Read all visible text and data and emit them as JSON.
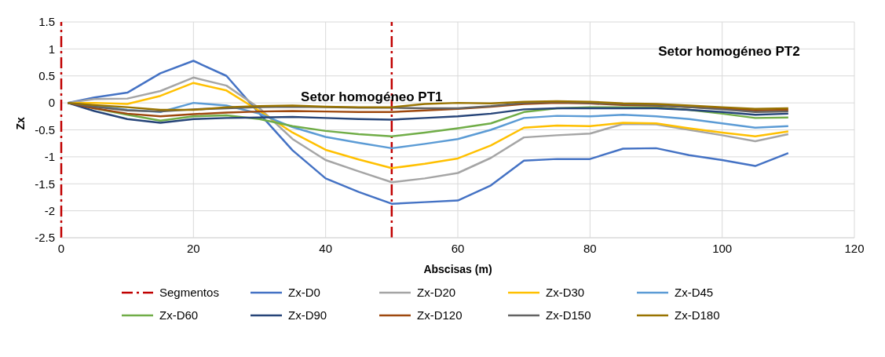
{
  "chart_data": {
    "type": "line",
    "xlabel": "Abscisas (m)",
    "ylabel": "Zx",
    "annotations": [
      "Setor homogéneo PT1",
      "Setor homogéneo PT2"
    ],
    "x": [
      1,
      5,
      10,
      15,
      20,
      25,
      30,
      35,
      40,
      45,
      50,
      55,
      60,
      65,
      70,
      75,
      80,
      85,
      90,
      95,
      100,
      105,
      110
    ],
    "xlim": [
      0,
      120
    ],
    "xticks": [
      0,
      20,
      40,
      60,
      80,
      100,
      120
    ],
    "ylim": [
      -2.5,
      1.5
    ],
    "yticks": [
      -2.5,
      -2,
      -1.5,
      -1,
      -0.5,
      0,
      0.5,
      1,
      1.5
    ],
    "ref_lines": [
      {
        "axis": "x",
        "value": 0,
        "color": "#c00000",
        "line_style": "dashed"
      },
      {
        "axis": "x",
        "value": 50,
        "label": "Segmentos",
        "color": "#c00000",
        "line_style": "dashed"
      }
    ],
    "grid": true,
    "legend": "bottom",
    "marker": "none",
    "line_style": "solid",
    "series": [
      {
        "name": "Zx-D0",
        "color": "#4472c4",
        "values": [
          0,
          0.1,
          0.19,
          0.55,
          0.78,
          0.5,
          -0.2,
          -0.88,
          -1.4,
          -1.65,
          -1.87,
          -1.84,
          -1.81,
          -1.53,
          -1.07,
          -1.04,
          -1.04,
          -0.85,
          -0.84,
          -0.97,
          -1.06,
          -1.17,
          -0.93
        ]
      },
      {
        "name": "Zx-D20",
        "color": "#a5a5a5",
        "values": [
          0,
          0.07,
          0.08,
          0.22,
          0.47,
          0.32,
          -0.1,
          -0.67,
          -1.06,
          -1.27,
          -1.47,
          -1.4,
          -1.3,
          -1.02,
          -0.64,
          -0.6,
          -0.57,
          -0.39,
          -0.4,
          -0.5,
          -0.6,
          -0.71,
          -0.58
        ]
      },
      {
        "name": "Zx-D30",
        "color": "#ffc000",
        "values": [
          0,
          0,
          -0.02,
          0.13,
          0.37,
          0.23,
          -0.15,
          -0.55,
          -0.87,
          -1.05,
          -1.21,
          -1.13,
          -1.03,
          -0.79,
          -0.46,
          -0.42,
          -0.43,
          -0.37,
          -0.38,
          -0.47,
          -0.55,
          -0.62,
          -0.53
        ]
      },
      {
        "name": "Zx-D45",
        "color": "#5b9bd5",
        "values": [
          0,
          -0.05,
          -0.13,
          -0.17,
          0,
          -0.05,
          -0.2,
          -0.45,
          -0.63,
          -0.74,
          -0.84,
          -0.76,
          -0.67,
          -0.5,
          -0.28,
          -0.24,
          -0.25,
          -0.22,
          -0.25,
          -0.3,
          -0.38,
          -0.46,
          -0.43
        ]
      },
      {
        "name": "Zx-D60",
        "color": "#70ad47",
        "values": [
          0,
          -0.1,
          -0.22,
          -0.33,
          -0.25,
          -0.23,
          -0.3,
          -0.43,
          -0.52,
          -0.58,
          -0.62,
          -0.55,
          -0.47,
          -0.38,
          -0.17,
          -0.1,
          -0.08,
          -0.08,
          -0.08,
          -0.13,
          -0.2,
          -0.28,
          -0.27
        ]
      },
      {
        "name": "Zx-D90",
        "color": "#264478",
        "values": [
          0,
          -0.15,
          -0.3,
          -0.37,
          -0.3,
          -0.28,
          -0.27,
          -0.26,
          -0.28,
          -0.3,
          -0.31,
          -0.28,
          -0.25,
          -0.2,
          -0.12,
          -0.1,
          -0.1,
          -0.1,
          -0.1,
          -0.13,
          -0.17,
          -0.22,
          -0.2
        ]
      },
      {
        "name": "Zx-D120",
        "color": "#9e480e",
        "values": [
          0,
          -0.1,
          -0.2,
          -0.25,
          -0.21,
          -0.18,
          -0.16,
          -0.15,
          -0.16,
          -0.17,
          -0.17,
          -0.14,
          -0.11,
          -0.07,
          -0.02,
          0,
          -0.01,
          -0.04,
          -0.05,
          -0.08,
          -0.1,
          -0.14,
          -0.13
        ]
      },
      {
        "name": "Zx-D150",
        "color": "#636363",
        "values": [
          0,
          -0.07,
          -0.14,
          -0.16,
          -0.12,
          -0.1,
          -0.08,
          -0.07,
          -0.08,
          -0.09,
          -0.09,
          -0.1,
          -0.1,
          -0.06,
          0,
          0.02,
          0,
          -0.02,
          -0.04,
          -0.08,
          -0.12,
          -0.17,
          -0.16
        ]
      },
      {
        "name": "Zx-D180",
        "color": "#997300",
        "values": [
          0,
          -0.04,
          -0.08,
          -0.13,
          -0.13,
          -0.08,
          -0.06,
          -0.05,
          -0.07,
          -0.08,
          -0.08,
          -0.02,
          0,
          -0.01,
          0.02,
          0.03,
          0.02,
          -0.01,
          -0.02,
          -0.05,
          -0.08,
          -0.11,
          -0.1
        ]
      }
    ]
  }
}
